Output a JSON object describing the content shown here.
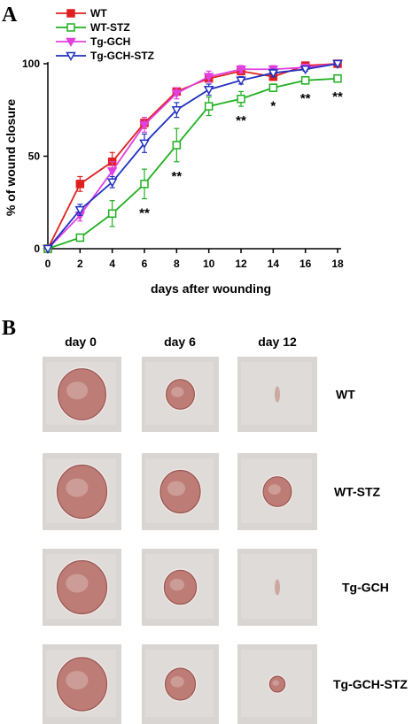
{
  "panels": {
    "a_letter": "A",
    "b_letter": "B"
  },
  "chart_data": {
    "type": "line",
    "xlabel": "days after wounding",
    "ylabel": "% of wound closure",
    "xlim": [
      0,
      18
    ],
    "ylim": [
      0,
      100
    ],
    "x_ticks": [
      0,
      2,
      4,
      6,
      8,
      10,
      12,
      14,
      16,
      18
    ],
    "y_ticks": [
      0,
      50,
      100
    ],
    "grid": false,
    "legend_position": "top-left",
    "x": [
      0,
      2,
      4,
      6,
      8,
      10,
      12,
      14,
      16,
      18
    ],
    "series": [
      {
        "name": "WT",
        "color": "#e02020",
        "marker": "filled-square",
        "values": [
          0,
          35,
          47,
          68,
          85,
          92,
          96,
          93,
          99,
          100
        ],
        "errors": [
          0,
          4,
          5,
          3,
          2,
          2,
          2,
          2,
          1,
          1
        ]
      },
      {
        "name": "WT-STZ",
        "color": "#20b020",
        "marker": "open-square",
        "values": [
          0,
          6,
          19,
          35,
          56,
          77,
          81,
          87,
          91,
          92
        ],
        "errors": [
          0,
          1,
          7,
          8,
          9,
          5,
          4,
          2,
          2,
          2
        ]
      },
      {
        "name": "Tg-GCH",
        "color": "#e040e0",
        "marker": "filled-down-triangle",
        "values": [
          0,
          18,
          42,
          67,
          84,
          93,
          97,
          97,
          98,
          100
        ],
        "errors": [
          0,
          3,
          5,
          4,
          3,
          3,
          2,
          2,
          1,
          1
        ]
      },
      {
        "name": "Tg-GCH-STZ",
        "color": "#2030c0",
        "marker": "open-down-triangle",
        "values": [
          0,
          21,
          36,
          57,
          75,
          86,
          91,
          95,
          97,
          100
        ],
        "errors": [
          0,
          3,
          3,
          5,
          4,
          3,
          2,
          2,
          1,
          1
        ]
      }
    ],
    "annotations": [
      {
        "x": 6,
        "text": "**"
      },
      {
        "x": 8,
        "text": "**"
      },
      {
        "x": 12,
        "text": "**"
      },
      {
        "x": 14,
        "text": "*"
      },
      {
        "x": 16,
        "text": "**"
      },
      {
        "x": 18,
        "text": "**"
      }
    ]
  },
  "photo_grid": {
    "columns": [
      "day 0",
      "day 6",
      "day 12"
    ],
    "rows": [
      "WT",
      "WT-STZ",
      "Tg-GCH",
      "Tg-GCH-STZ"
    ],
    "background_color": "#d9d5d2",
    "wound_color": "#b56a63",
    "wound_edge_color": "#8a3f3a",
    "wound_size_levels": [
      [
        0.95,
        0.45,
        0.05
      ],
      [
        1.0,
        0.75,
        0.45
      ],
      [
        1.0,
        0.55,
        0.08
      ],
      [
        1.0,
        0.5,
        0.12
      ]
    ]
  }
}
